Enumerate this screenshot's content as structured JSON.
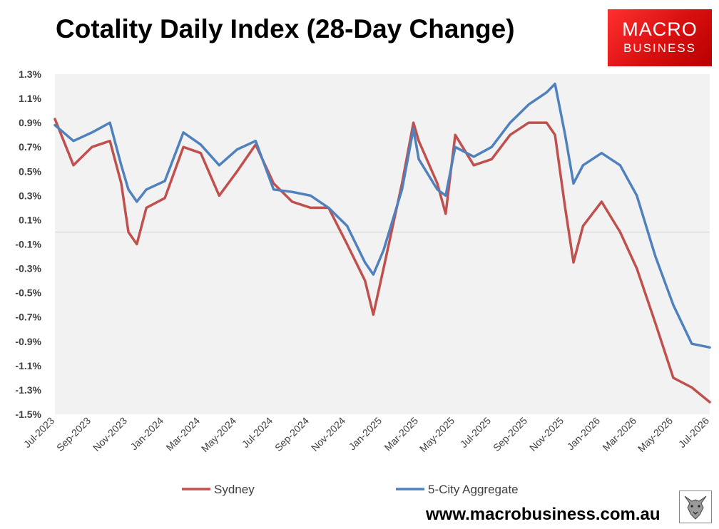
{
  "header": {
    "title": "Cotality Daily Index (28-Day Change)"
  },
  "logo": {
    "line1": "MACRO",
    "line2": "BUSINESS"
  },
  "footer": {
    "website": "www.macrobusiness.com.au"
  },
  "colors": {
    "sydney": "#c0504d",
    "aggregate": "#4f81bd",
    "plot_bg": "#f2f2f2",
    "logo_red": "#e31b1b"
  },
  "chart_data": {
    "type": "line",
    "title": "Cotality Daily Index (28-Day Change)",
    "xlabel": "",
    "ylabel": "",
    "ylim": [
      -1.5,
      1.3
    ],
    "yticks": [
      1.3,
      1.1,
      0.9,
      0.7,
      0.5,
      0.3,
      0.1,
      -0.1,
      -0.3,
      -0.5,
      -0.7,
      -0.9,
      -1.1,
      -1.3,
      -1.5
    ],
    "ytick_labels": [
      "1.3%",
      "1.1%",
      "0.9%",
      "0.7%",
      "0.5%",
      "0.3%",
      "0.1%",
      "-0.1%",
      "-0.3%",
      "-0.5%",
      "-0.7%",
      "-0.9%",
      "-1.1%",
      "-1.3%",
      "-1.5%"
    ],
    "xlim": [
      "2023-07",
      "2026-07"
    ],
    "xtick_labels": [
      "Jul-2023",
      "Sep-2023",
      "Nov-2023",
      "Jan-2024",
      "Mar-2024",
      "May-2024",
      "Jul-2024",
      "Sep-2024",
      "Nov-2024",
      "Jan-2025",
      "Mar-2025",
      "May-2025",
      "Jul-2025",
      "Sep-2025",
      "Nov-2025",
      "Jan-2026",
      "Mar-2026",
      "May-2026",
      "Jul-2026"
    ],
    "zero_line": 0,
    "grid": false,
    "legend": "bottom",
    "series": [
      {
        "name": "Sydney",
        "color": "#c0504d",
        "x": [
          "2023-07",
          "2023-08",
          "2023-09",
          "2023-10",
          "2023-10-20",
          "2023-11",
          "2023-11-15",
          "2023-12",
          "2024-01",
          "2024-02",
          "2024-03",
          "2024-04",
          "2024-05",
          "2024-06",
          "2024-07",
          "2024-08",
          "2024-09",
          "2024-10",
          "2024-11",
          "2024-12",
          "2024-12-15",
          "2025-01",
          "2025-02",
          "2025-02-20",
          "2025-03",
          "2025-04",
          "2025-04-15",
          "2025-05",
          "2025-06",
          "2025-07",
          "2025-08",
          "2025-09",
          "2025-10",
          "2025-10-15",
          "2025-11",
          "2025-11-15",
          "2025-12",
          "2026-01",
          "2026-02",
          "2026-03",
          "2026-04",
          "2026-05",
          "2026-06",
          "2026-07"
        ],
        "y": [
          0.93,
          0.55,
          0.7,
          0.75,
          0.4,
          0.0,
          -0.1,
          0.2,
          0.28,
          0.7,
          0.65,
          0.3,
          0.5,
          0.72,
          0.4,
          0.25,
          0.2,
          0.2,
          -0.1,
          -0.4,
          -0.68,
          -0.3,
          0.4,
          0.9,
          0.75,
          0.4,
          0.15,
          0.8,
          0.55,
          0.6,
          0.8,
          0.9,
          0.9,
          0.8,
          0.2,
          -0.25,
          0.05,
          0.25,
          0.0,
          -0.3,
          -0.75,
          -1.2,
          -1.28,
          -1.4
        ]
      },
      {
        "name": "5-City Aggregate",
        "color": "#4f81bd",
        "x": [
          "2023-07",
          "2023-08",
          "2023-09",
          "2023-10",
          "2023-10-20",
          "2023-11",
          "2023-11-15",
          "2023-12",
          "2024-01",
          "2024-02",
          "2024-03",
          "2024-04",
          "2024-05",
          "2024-06",
          "2024-07",
          "2024-08",
          "2024-09",
          "2024-10",
          "2024-11",
          "2024-12",
          "2024-12-15",
          "2025-01",
          "2025-02",
          "2025-02-20",
          "2025-03",
          "2025-04",
          "2025-04-15",
          "2025-05",
          "2025-06",
          "2025-07",
          "2025-08",
          "2025-09",
          "2025-10",
          "2025-10-15",
          "2025-11",
          "2025-11-15",
          "2025-12",
          "2026-01",
          "2026-02",
          "2026-03",
          "2026-04",
          "2026-05",
          "2026-06",
          "2026-07"
        ],
        "y": [
          0.88,
          0.75,
          0.82,
          0.9,
          0.55,
          0.35,
          0.25,
          0.35,
          0.42,
          0.82,
          0.72,
          0.55,
          0.68,
          0.75,
          0.35,
          0.33,
          0.3,
          0.2,
          0.05,
          -0.25,
          -0.35,
          -0.15,
          0.35,
          0.85,
          0.6,
          0.35,
          0.3,
          0.7,
          0.62,
          0.7,
          0.9,
          1.05,
          1.15,
          1.22,
          0.8,
          0.4,
          0.55,
          0.65,
          0.55,
          0.3,
          -0.2,
          -0.6,
          -0.92,
          -0.95
        ]
      }
    ]
  }
}
